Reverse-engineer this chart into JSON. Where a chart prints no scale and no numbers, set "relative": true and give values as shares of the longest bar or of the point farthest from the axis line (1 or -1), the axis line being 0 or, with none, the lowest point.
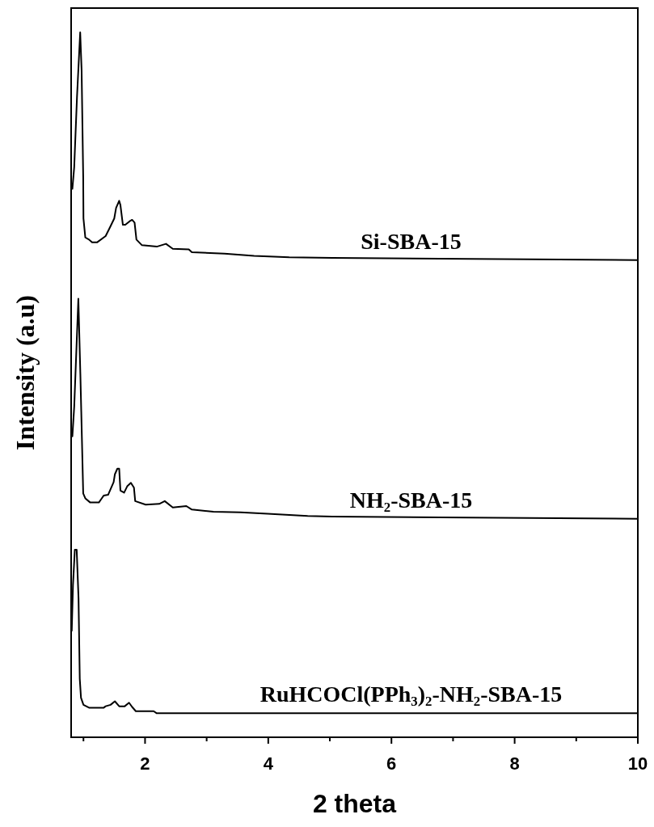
{
  "chart_data": {
    "type": "line",
    "relative": true,
    "xlabel": "2 theta",
    "ylabel": "Intensity (a.u)",
    "xlim": [
      0.8,
      10
    ],
    "xticks": [
      {
        "value": 1,
        "label": null
      },
      2,
      {
        "value": 3,
        "label": null
      },
      4,
      {
        "value": 5,
        "label": null
      },
      6,
      {
        "value": 7,
        "label": null
      },
      8,
      {
        "value": 9,
        "label": null
      },
      10
    ],
    "tick_labels": "x",
    "grid": false,
    "legend": false,
    "marker": "none",
    "line_style": "solid",
    "series": [
      {
        "name": "Si-SBA-15",
        "color": "#000000",
        "x": [
          0.82,
          0.85,
          0.895,
          0.947,
          0.97,
          0.996,
          1.0,
          1.03,
          1.09,
          1.14,
          1.22,
          1.36,
          1.44,
          1.5,
          1.53,
          1.58,
          1.6,
          1.64,
          1.68,
          1.75,
          1.79,
          1.83,
          1.86,
          1.95,
          2.19,
          2.34,
          2.45,
          2.71,
          2.76,
          3.29,
          3.77,
          4.34,
          5.04,
          10
        ],
        "values": [
          0.778,
          0.809,
          0.908,
          1.0,
          0.946,
          0.794,
          0.736,
          0.709,
          0.706,
          0.702,
          0.702,
          0.711,
          0.725,
          0.736,
          0.751,
          0.761,
          0.755,
          0.727,
          0.727,
          0.732,
          0.734,
          0.73,
          0.706,
          0.698,
          0.696,
          0.7,
          0.693,
          0.692,
          0.688,
          0.686,
          0.683,
          0.681,
          0.68,
          0.677
        ]
      },
      {
        "name": "NH$_{2}$-SBA-15",
        "color": "#000000",
        "x": [
          0.82,
          0.85,
          0.917,
          0.95,
          0.996,
          1.03,
          1.11,
          1.25,
          1.29,
          1.33,
          1.4,
          1.49,
          1.51,
          1.55,
          1.58,
          1.6,
          1.66,
          1.71,
          1.77,
          1.82,
          1.84,
          2.01,
          2.23,
          2.32,
          2.45,
          2.67,
          2.76,
          3.11,
          3.55,
          3.99,
          4.64,
          5.04,
          10
        ],
        "values": [
          0.427,
          0.469,
          0.622,
          0.515,
          0.346,
          0.339,
          0.333,
          0.333,
          0.338,
          0.343,
          0.344,
          0.362,
          0.373,
          0.381,
          0.381,
          0.35,
          0.347,
          0.356,
          0.361,
          0.354,
          0.335,
          0.33,
          0.331,
          0.335,
          0.326,
          0.328,
          0.323,
          0.32,
          0.319,
          0.317,
          0.314,
          0.313,
          0.31
        ]
      },
      {
        "name": "RuHCOCl(PPh$_{3}$)$_{2}$-NH$_{2}$-SBA-15",
        "color": "#000000",
        "x": [
          0.81,
          0.83,
          0.86,
          0.89,
          0.92,
          0.94,
          0.96,
          1.0,
          1.09,
          1.33,
          1.36,
          1.44,
          1.51,
          1.58,
          1.67,
          1.74,
          1.79,
          1.85,
          2.14,
          2.19,
          10
        ],
        "values": [
          0.151,
          0.216,
          0.266,
          0.266,
          0.197,
          0.083,
          0.056,
          0.046,
          0.042,
          0.042,
          0.044,
          0.046,
          0.051,
          0.044,
          0.044,
          0.049,
          0.043,
          0.037,
          0.037,
          0.034,
          0.034
        ]
      }
    ]
  }
}
